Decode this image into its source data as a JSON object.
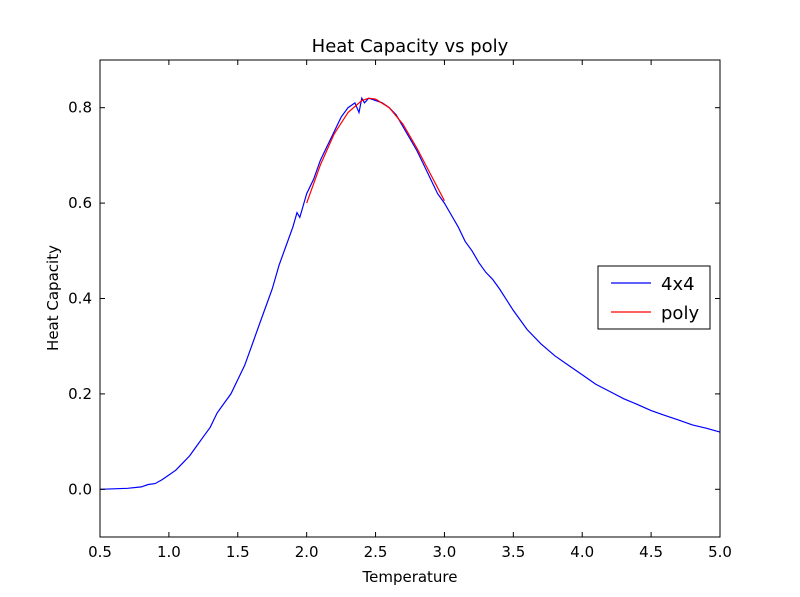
{
  "chart_data": {
    "type": "line",
    "title": "Heat Capacity vs poly",
    "xlabel": "Temperature",
    "ylabel": "Heat Capacity",
    "xlim": [
      0.5,
      5.0
    ],
    "ylim": [
      -0.1,
      0.9
    ],
    "xticks": [
      0.5,
      1.0,
      1.5,
      2.0,
      2.5,
      3.0,
      3.5,
      4.0,
      4.5,
      5.0
    ],
    "xtick_labels": [
      "0.5",
      "1.0",
      "1.5",
      "2.0",
      "2.5",
      "3.0",
      "3.5",
      "4.0",
      "4.5",
      "5.0"
    ],
    "yticks": [
      0.0,
      0.2,
      0.4,
      0.6,
      0.8
    ],
    "ytick_labels": [
      "0.0",
      "0.2",
      "0.4",
      "0.6",
      "0.8"
    ],
    "grid": false,
    "legend_position": "center-right",
    "series": [
      {
        "name": "4x4",
        "color": "#0000ff",
        "x": [
          0.5,
          0.6,
          0.7,
          0.8,
          0.85,
          0.9,
          0.95,
          1.0,
          1.05,
          1.1,
          1.15,
          1.2,
          1.25,
          1.3,
          1.35,
          1.4,
          1.45,
          1.5,
          1.55,
          1.6,
          1.65,
          1.7,
          1.75,
          1.8,
          1.85,
          1.9,
          1.93,
          1.95,
          2.0,
          2.05,
          2.1,
          2.15,
          2.2,
          2.25,
          2.3,
          2.35,
          2.38,
          2.4,
          2.42,
          2.45,
          2.5,
          2.55,
          2.6,
          2.65,
          2.7,
          2.75,
          2.8,
          2.85,
          2.9,
          2.95,
          3.0,
          3.05,
          3.1,
          3.15,
          3.2,
          3.25,
          3.3,
          3.35,
          3.4,
          3.5,
          3.6,
          3.7,
          3.8,
          3.9,
          4.0,
          4.1,
          4.2,
          4.3,
          4.4,
          4.5,
          4.6,
          4.7,
          4.8,
          4.9,
          5.0
        ],
        "y": [
          0.0,
          0.001,
          0.002,
          0.005,
          0.01,
          0.012,
          0.02,
          0.03,
          0.04,
          0.055,
          0.07,
          0.09,
          0.11,
          0.13,
          0.16,
          0.18,
          0.2,
          0.23,
          0.26,
          0.3,
          0.34,
          0.38,
          0.42,
          0.47,
          0.51,
          0.55,
          0.58,
          0.57,
          0.62,
          0.65,
          0.69,
          0.72,
          0.75,
          0.78,
          0.8,
          0.81,
          0.79,
          0.82,
          0.81,
          0.82,
          0.815,
          0.81,
          0.8,
          0.785,
          0.76,
          0.735,
          0.71,
          0.68,
          0.65,
          0.62,
          0.6,
          0.575,
          0.55,
          0.52,
          0.5,
          0.475,
          0.455,
          0.44,
          0.42,
          0.375,
          0.335,
          0.305,
          0.28,
          0.26,
          0.24,
          0.22,
          0.205,
          0.19,
          0.178,
          0.165,
          0.155,
          0.145,
          0.135,
          0.128,
          0.12
        ]
      },
      {
        "name": "poly",
        "color": "#ff0000",
        "x": [
          2.0,
          2.1,
          2.2,
          2.3,
          2.4,
          2.45,
          2.5,
          2.6,
          2.7,
          2.8,
          2.9,
          3.0
        ],
        "y": [
          0.6,
          0.68,
          0.745,
          0.79,
          0.815,
          0.82,
          0.818,
          0.8,
          0.765,
          0.715,
          0.66,
          0.605
        ]
      }
    ]
  }
}
